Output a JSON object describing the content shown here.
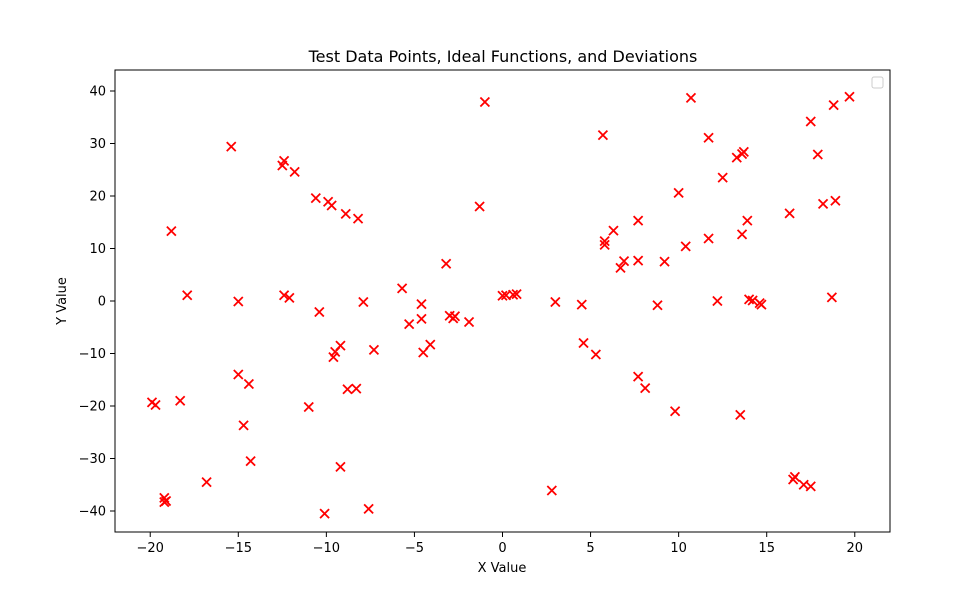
{
  "chart_data": {
    "type": "scatter",
    "title": "Test Data Points, Ideal Functions, and Deviations",
    "xlabel": "X Value",
    "ylabel": "Y Value",
    "xlim": [
      -22,
      22
    ],
    "ylim": [
      -44,
      44
    ],
    "xticks": [
      -20,
      -15,
      -10,
      -5,
      0,
      5,
      10,
      15,
      20
    ],
    "yticks": [
      -40,
      -30,
      -20,
      -10,
      0,
      10,
      20,
      30,
      40
    ],
    "grid": false,
    "legend": "top-right (empty)",
    "marker": "x",
    "marker_color": "#ff0000",
    "points": [
      [
        -19.9,
        -19.3
      ],
      [
        -19.7,
        -19.8
      ],
      [
        -19.2,
        -37.5
      ],
      [
        -19.2,
        -38.3
      ],
      [
        -19.1,
        -38.1
      ],
      [
        -18.8,
        13.3
      ],
      [
        -18.3,
        -19.0
      ],
      [
        -17.9,
        1.1
      ],
      [
        -16.8,
        -34.5
      ],
      [
        -15.4,
        29.4
      ],
      [
        -15.0,
        -0.1
      ],
      [
        -15.0,
        -14.0
      ],
      [
        -14.7,
        -23.7
      ],
      [
        -14.4,
        -15.8
      ],
      [
        -14.3,
        -30.5
      ],
      [
        -12.5,
        25.8
      ],
      [
        -12.4,
        26.7
      ],
      [
        -12.4,
        1.1
      ],
      [
        -12.1,
        0.6
      ],
      [
        -11.8,
        24.6
      ],
      [
        -11.0,
        -20.2
      ],
      [
        -10.6,
        19.6
      ],
      [
        -10.4,
        -2.1
      ],
      [
        -10.1,
        -40.5
      ],
      [
        -9.9,
        18.9
      ],
      [
        -9.7,
        18.2
      ],
      [
        -9.6,
        -10.7
      ],
      [
        -9.5,
        -9.7
      ],
      [
        -9.2,
        -8.5
      ],
      [
        -9.2,
        -31.6
      ],
      [
        -8.9,
        16.6
      ],
      [
        -8.8,
        -16.8
      ],
      [
        -8.3,
        -16.7
      ],
      [
        -8.2,
        15.7
      ],
      [
        -7.9,
        -0.2
      ],
      [
        -7.6,
        -39.6
      ],
      [
        -7.3,
        -9.3
      ],
      [
        -5.7,
        2.4
      ],
      [
        -5.3,
        -4.4
      ],
      [
        -4.6,
        -0.6
      ],
      [
        -4.6,
        -3.4
      ],
      [
        -4.5,
        -9.8
      ],
      [
        -4.1,
        -8.3
      ],
      [
        -3.2,
        7.1
      ],
      [
        -3.0,
        -2.8
      ],
      [
        -2.8,
        -3.3
      ],
      [
        -2.7,
        -2.9
      ],
      [
        -1.9,
        -4.0
      ],
      [
        -1.3,
        18.0
      ],
      [
        -1.0,
        37.9
      ],
      [
        0.0,
        1.0
      ],
      [
        0.2,
        1.1
      ],
      [
        0.6,
        1.2
      ],
      [
        0.8,
        1.3
      ],
      [
        2.8,
        -36.1
      ],
      [
        3.0,
        -0.2
      ],
      [
        4.5,
        -0.7
      ],
      [
        4.6,
        -8.0
      ],
      [
        5.3,
        -10.2
      ],
      [
        5.7,
        31.6
      ],
      [
        5.8,
        11.4
      ],
      [
        5.8,
        10.7
      ],
      [
        6.3,
        13.4
      ],
      [
        6.7,
        6.3
      ],
      [
        6.9,
        7.6
      ],
      [
        7.7,
        15.3
      ],
      [
        7.7,
        7.7
      ],
      [
        7.7,
        -14.4
      ],
      [
        8.1,
        -16.6
      ],
      [
        8.8,
        -0.8
      ],
      [
        9.2,
        7.5
      ],
      [
        9.8,
        -21.0
      ],
      [
        10.0,
        20.6
      ],
      [
        10.4,
        10.4
      ],
      [
        10.7,
        38.7
      ],
      [
        11.7,
        31.1
      ],
      [
        11.7,
        11.9
      ],
      [
        12.2,
        0.0
      ],
      [
        12.5,
        23.5
      ],
      [
        13.3,
        27.3
      ],
      [
        13.5,
        -21.7
      ],
      [
        13.6,
        12.7
      ],
      [
        13.6,
        28.0
      ],
      [
        13.7,
        28.4
      ],
      [
        13.9,
        15.3
      ],
      [
        14.0,
        0.3
      ],
      [
        14.2,
        0.1
      ],
      [
        14.6,
        -0.4
      ],
      [
        14.7,
        -0.7
      ],
      [
        16.3,
        16.7
      ],
      [
        16.5,
        -34.0
      ],
      [
        16.6,
        -33.5
      ],
      [
        17.1,
        -35.0
      ],
      [
        17.5,
        -35.3
      ],
      [
        17.5,
        34.2
      ],
      [
        17.9,
        27.9
      ],
      [
        18.2,
        18.5
      ],
      [
        18.7,
        0.7
      ],
      [
        18.8,
        37.3
      ],
      [
        18.9,
        19.1
      ],
      [
        19.7,
        38.9
      ]
    ]
  }
}
